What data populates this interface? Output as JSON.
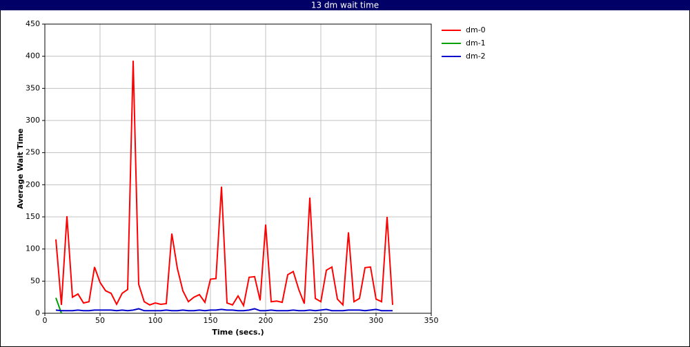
{
  "chart_data": {
    "type": "line",
    "title": "13 dm wait time",
    "x_label": "Time (secs.)",
    "y_label": "Average Wait Time",
    "xlim": [
      0,
      350
    ],
    "xticks": [
      0,
      50,
      100,
      150,
      200,
      250,
      300,
      350
    ],
    "ylim": [
      0,
      450
    ],
    "yticks": [
      0,
      50,
      100,
      150,
      200,
      250,
      300,
      350,
      400,
      450
    ],
    "grid": true,
    "legend": "right",
    "series": [
      {
        "name": "dm-0",
        "color": "#ff0000",
        "x": [
          10,
          15,
          20,
          25,
          30,
          35,
          40,
          45,
          50,
          55,
          60,
          65,
          70,
          75,
          80,
          85,
          90,
          95,
          100,
          105,
          110,
          115,
          120,
          125,
          130,
          135,
          140,
          145,
          150,
          155,
          160,
          165,
          170,
          175,
          180,
          185,
          190,
          195,
          200,
          205,
          210,
          215,
          220,
          225,
          230,
          235,
          240,
          245,
          250,
          255,
          260,
          265,
          270,
          275,
          280,
          285,
          290,
          295,
          300,
          305,
          310,
          315
        ],
        "values": [
          115,
          13,
          151,
          25,
          30,
          16,
          18,
          72,
          48,
          35,
          31,
          14,
          31,
          37,
          393,
          45,
          18,
          13,
          16,
          14,
          15,
          124,
          70,
          35,
          18,
          25,
          29,
          17,
          53,
          54,
          197,
          16,
          13,
          27,
          12,
          56,
          57,
          20,
          138,
          18,
          19,
          17,
          60,
          65,
          37,
          15,
          180,
          23,
          18,
          67,
          72,
          22,
          13,
          126,
          18,
          23,
          71,
          72,
          22,
          18,
          150,
          13
        ]
      },
      {
        "name": "dm-1",
        "color": "#00a000",
        "x": [
          10,
          15
        ],
        "values": [
          24,
          0
        ]
      },
      {
        "name": "dm-2",
        "color": "#0000cc",
        "x": [
          10,
          15,
          20,
          25,
          30,
          35,
          40,
          45,
          50,
          55,
          60,
          65,
          70,
          75,
          80,
          85,
          90,
          95,
          100,
          105,
          110,
          115,
          120,
          125,
          130,
          135,
          140,
          145,
          150,
          155,
          160,
          165,
          170,
          175,
          180,
          185,
          190,
          195,
          200,
          205,
          210,
          215,
          220,
          225,
          230,
          235,
          240,
          245,
          250,
          255,
          260,
          265,
          270,
          275,
          280,
          285,
          290,
          295,
          300,
          305,
          310,
          315
        ],
        "values": [
          5,
          4,
          4,
          4,
          5,
          4,
          4,
          5,
          5,
          5,
          5,
          4,
          5,
          4,
          5,
          7,
          4,
          4,
          4,
          4,
          5,
          4,
          4,
          5,
          4,
          4,
          5,
          4,
          5,
          5,
          6,
          5,
          5,
          4,
          4,
          5,
          7,
          4,
          4,
          5,
          4,
          4,
          4,
          5,
          4,
          4,
          5,
          4,
          5,
          6,
          4,
          4,
          4,
          5,
          5,
          5,
          4,
          5,
          6,
          4,
          4,
          4
        ]
      }
    ]
  }
}
